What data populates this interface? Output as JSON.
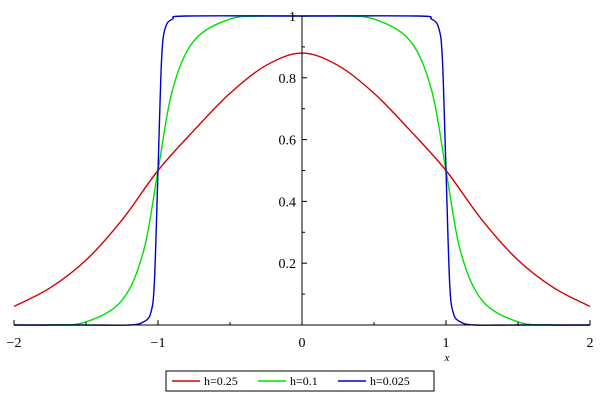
{
  "chart_data": {
    "type": "line",
    "xlabel": "x",
    "ylabel": "",
    "xlim": [
      -2,
      2
    ],
    "ylim": [
      0,
      1
    ],
    "x_ticks": [
      "−2",
      "−1",
      "0",
      "1",
      "2"
    ],
    "y_ticks": [
      "0.2",
      "0.4",
      "0.6",
      "0.8",
      "1"
    ],
    "grid": false,
    "legend_position": "bottom",
    "series": [
      {
        "name": "h=0.25",
        "color": "#d40000",
        "x": [
          -2,
          -1.75,
          -1.5,
          -1.25,
          -1,
          -0.75,
          -0.5,
          -0.25,
          0,
          0.25,
          0.5,
          0.75,
          1,
          1.25,
          1.5,
          1.75,
          2
        ],
        "y": [
          0.06,
          0.12,
          0.21,
          0.34,
          0.5,
          0.63,
          0.75,
          0.84,
          0.88,
          0.84,
          0.75,
          0.63,
          0.5,
          0.34,
          0.21,
          0.12,
          0.06
        ]
      },
      {
        "name": "h=0.1",
        "color": "#00e000",
        "x": [
          -2,
          -1.75,
          -1.5,
          -1.25,
          -1.1,
          -1,
          -0.9,
          -0.75,
          -0.5,
          -0.25,
          0,
          0.25,
          0.5,
          0.75,
          0.9,
          1,
          1.1,
          1.25,
          1.5,
          1.75,
          2
        ],
        "y": [
          0.0,
          0.0,
          0.01,
          0.08,
          0.24,
          0.5,
          0.76,
          0.92,
          0.99,
          1.0,
          1.0,
          1.0,
          0.99,
          0.92,
          0.76,
          0.5,
          0.24,
          0.08,
          0.01,
          0.0,
          0.0
        ]
      },
      {
        "name": "h=0.025",
        "color": "#0000cc",
        "x": [
          -2,
          -1.5,
          -1.2,
          -1.1,
          -1.05,
          -1.025,
          -1,
          -0.975,
          -0.95,
          -0.9,
          -0.8,
          0,
          0.8,
          0.9,
          0.95,
          0.975,
          1,
          1.025,
          1.05,
          1.1,
          1.2,
          1.5,
          2
        ],
        "y": [
          0.0,
          0.0,
          0.0,
          0.01,
          0.04,
          0.14,
          0.5,
          0.86,
          0.96,
          0.99,
          1.0,
          1.0,
          1.0,
          0.99,
          0.96,
          0.86,
          0.5,
          0.14,
          0.04,
          0.01,
          0.0,
          0.0,
          0.0
        ]
      }
    ]
  }
}
